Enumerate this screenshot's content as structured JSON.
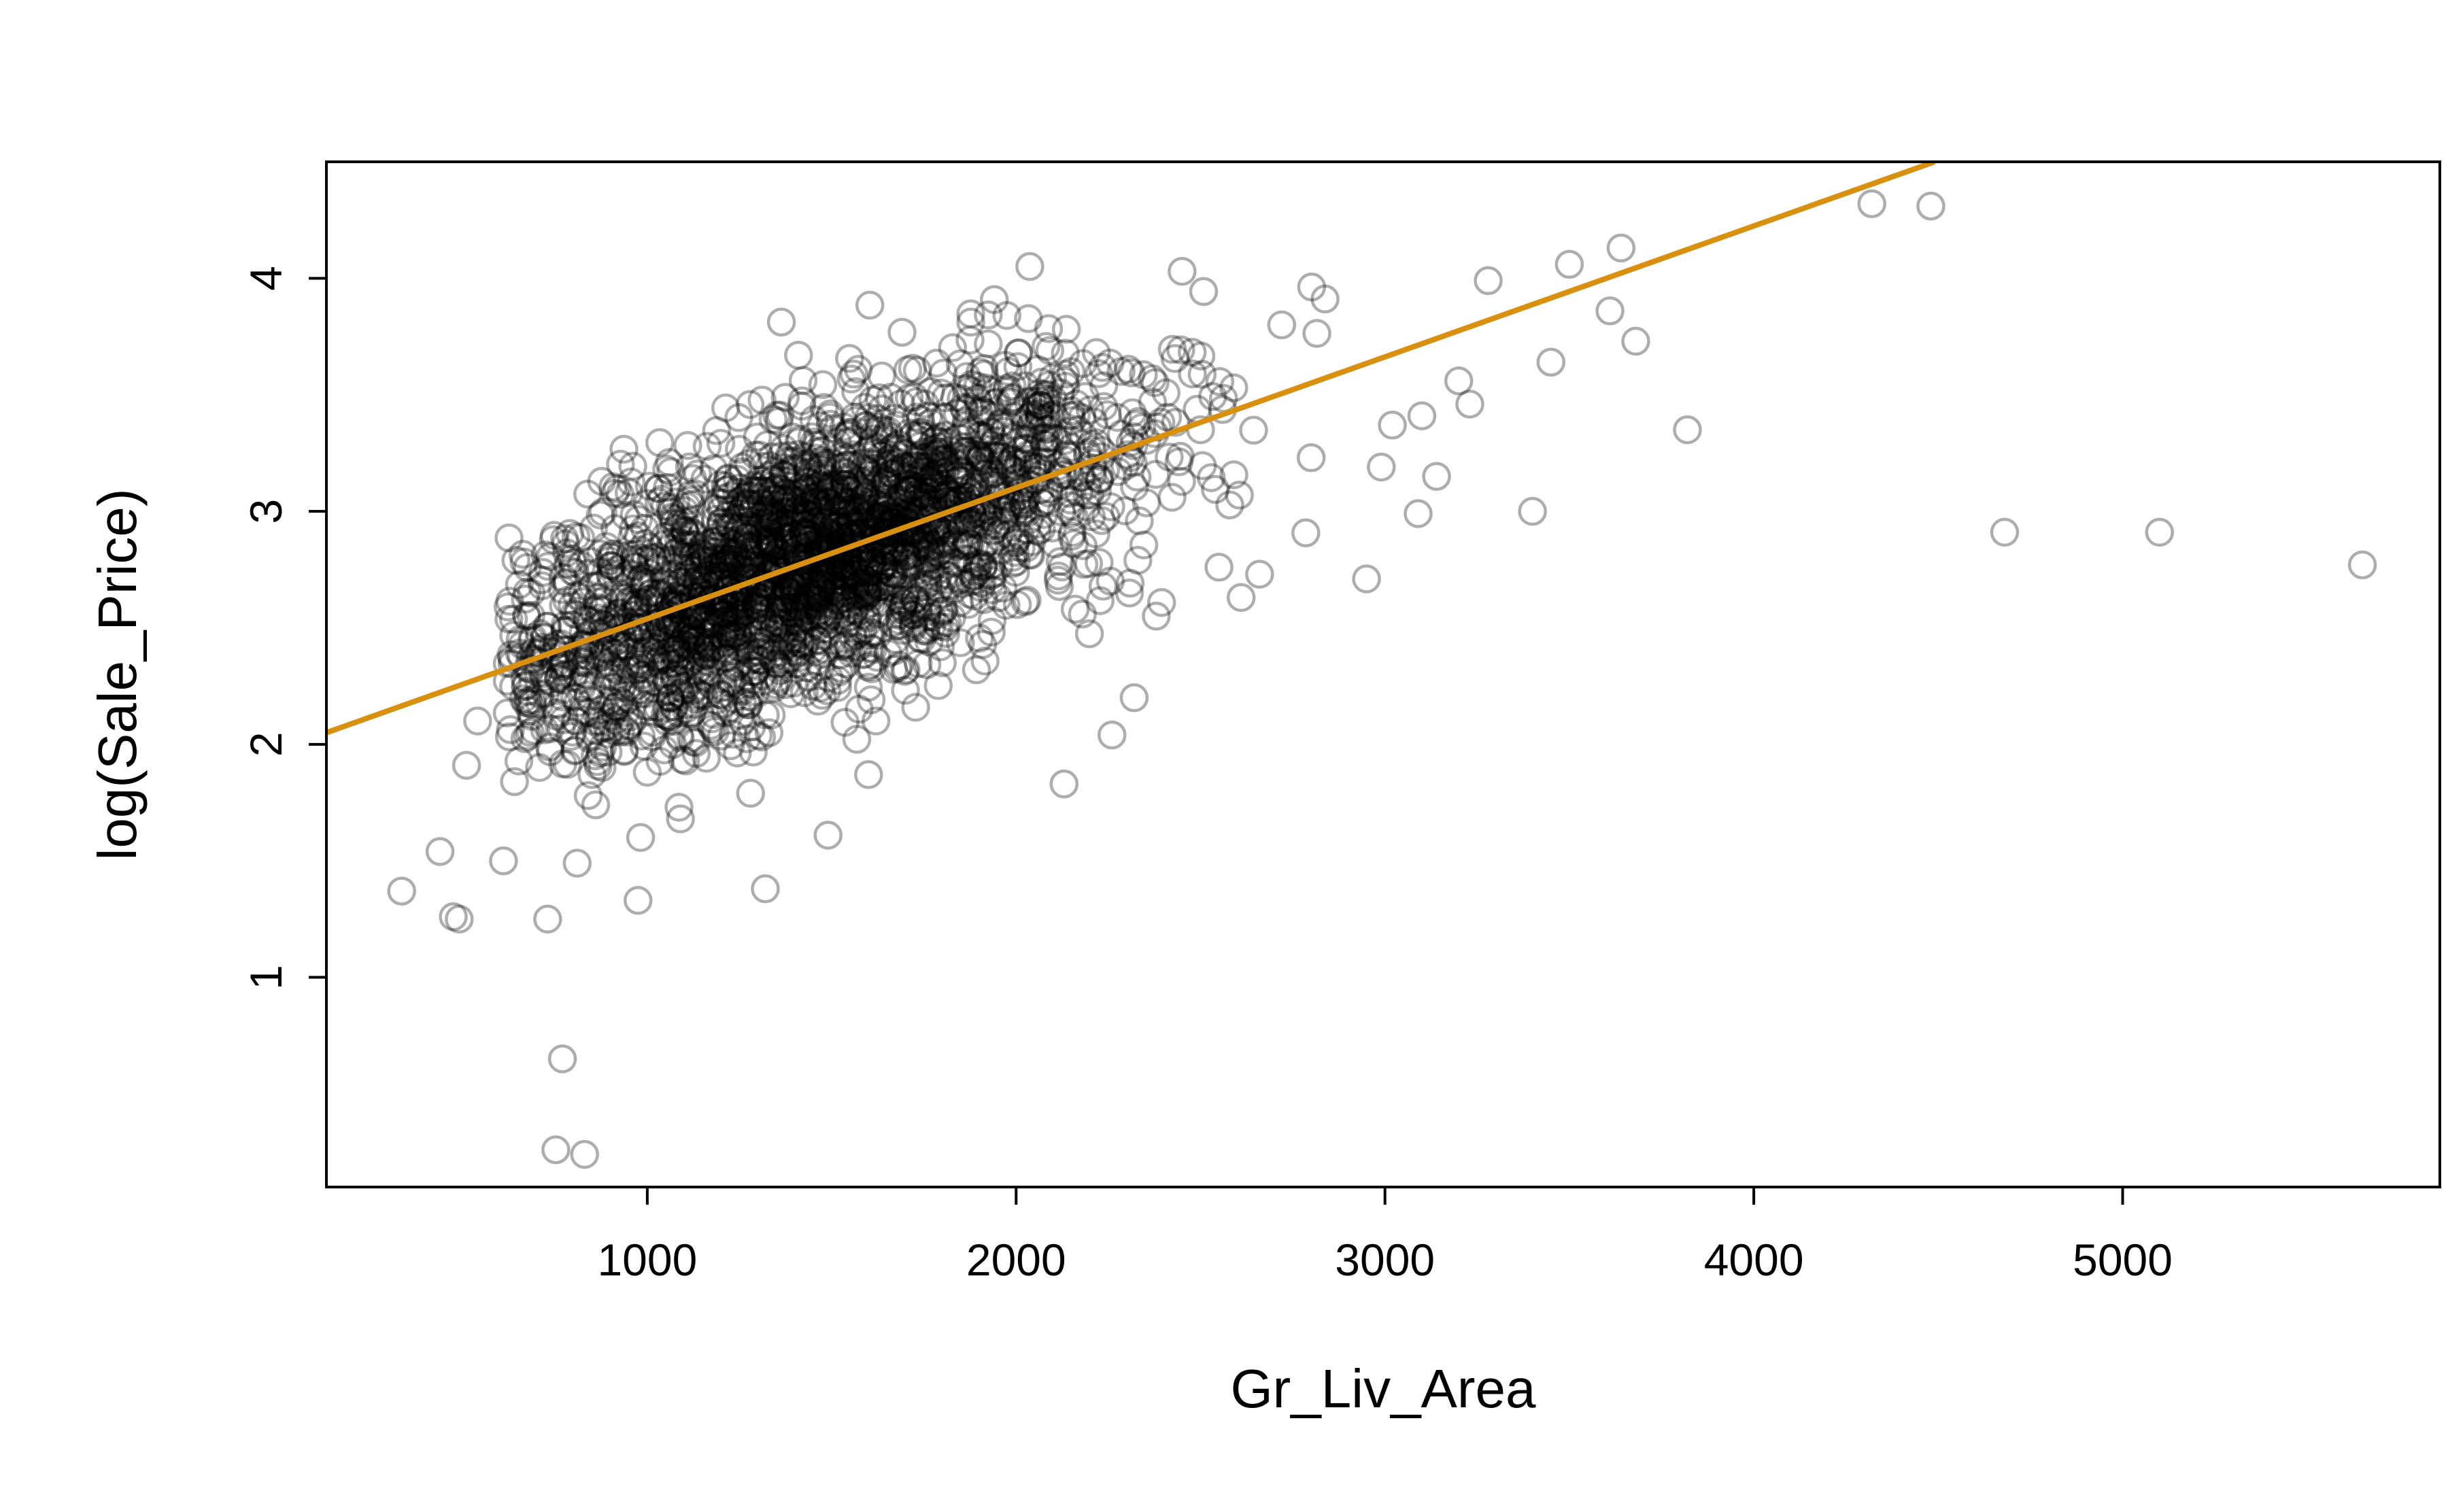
{
  "chart_data": {
    "type": "scatter",
    "title": "",
    "xlabel": "Gr_Liv_Area",
    "ylabel": "log(Sale_Price)",
    "xlim": [
      130,
      5860
    ],
    "ylim": [
      0.1,
      4.5
    ],
    "xticks": [
      1000,
      2000,
      3000,
      4000,
      5000
    ],
    "yticks": [
      1,
      2,
      3,
      4
    ],
    "grid": false,
    "legend": "none",
    "point_style": "open circle, semi-transparent black",
    "colors": {
      "points": "#000000",
      "fit_line": "#D9900E"
    },
    "fit_line": {
      "x": [
        130,
        4490
      ],
      "y": [
        2.05,
        4.5
      ]
    },
    "cluster": {
      "x_mean": 1450,
      "x_sd": 420,
      "slope": 0.000562,
      "intercept": 1.98,
      "residual_sd": 0.28,
      "n": 2850
    },
    "outliers": {
      "x": [
        334,
        438,
        474,
        490,
        510,
        540,
        610,
        640,
        730,
        752,
        770,
        810,
        830,
        840,
        850,
        860,
        975,
        982,
        1000,
        1086,
        1090,
        1120,
        1160,
        1280,
        1320,
        1330,
        1410,
        1490,
        1520,
        1600,
        1620,
        1800,
        2130,
        2160,
        2260,
        2320,
        2330,
        2380,
        2450,
        2500,
        2550,
        2590,
        2610,
        2660,
        2720,
        2800,
        2950,
        2990,
        3020,
        3090,
        3100,
        3140,
        3200,
        3230,
        3280,
        3400,
        3450,
        3500,
        3610,
        3640,
        3680,
        3820,
        4320,
        4480,
        4680,
        5100,
        5650
      ],
      "y": [
        1.37,
        1.54,
        1.26,
        1.25,
        1.91,
        2.1,
        1.5,
        1.84,
        1.25,
        0.26,
        0.65,
        1.49,
        0.24,
        1.78,
        1.87,
        1.74,
        1.33,
        1.6,
        1.88,
        1.73,
        1.68,
        2.46,
        1.94,
        1.79,
        1.38,
        2.05,
        3.67,
        1.61,
        2.31,
        1.87,
        2.1,
        2.35,
        1.83,
        2.58,
        2.04,
        2.2,
        2.79,
        2.55,
        4.03,
        3.35,
        2.76,
        3.53,
        2.63,
        2.73,
        3.8,
        3.23,
        2.71,
        3.19,
        3.37,
        2.99,
        3.41,
        3.15,
        3.56,
        3.46,
        3.99,
        3.0,
        3.64,
        4.06,
        3.86,
        4.13,
        3.73,
        3.35,
        4.32,
        4.31,
        2.91,
        2.91,
        2.77
      ]
    }
  }
}
